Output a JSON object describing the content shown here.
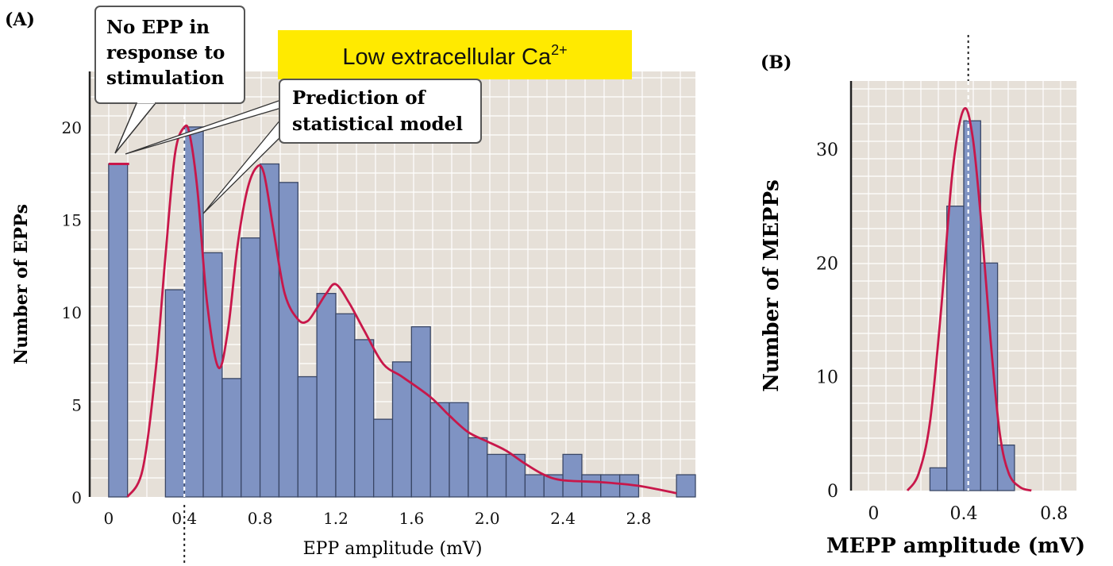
{
  "panel_a": {
    "label": "(A)",
    "banner": {
      "main": "Low extracellular Ca",
      "sup": "2+",
      "color": "#ffea00"
    },
    "callout_no_epp": [
      "No EPP in",
      "response to",
      "stimulation"
    ],
    "callout_prediction": [
      "Prediction of",
      "statistical model"
    ]
  },
  "panel_b": {
    "label": "(B)"
  },
  "colors": {
    "bar": "#7f93c3",
    "bar_stroke": "#3a4766",
    "curve": "#c8174a",
    "plot_bg": "#e6e0d8",
    "grid": "#ffffff"
  },
  "chart_data": [
    {
      "type": "bar",
      "xlabel": "EPP amplitude (mV)",
      "ylabel": "Number of  EPPs",
      "xlim": [
        -0.1,
        3.1
      ],
      "ylim": [
        0,
        23
      ],
      "xticks": [
        "0",
        "0.4",
        "0.8",
        "1.2",
        "1.6",
        "2.0",
        "2.4",
        "2.8"
      ],
      "xtick_values": [
        0,
        0.4,
        0.8,
        1.2,
        1.6,
        2.0,
        2.4,
        2.8
      ],
      "yticks": [
        "0",
        "5",
        "10",
        "15",
        "20"
      ],
      "ytick_values": [
        0,
        5,
        10,
        15,
        20
      ],
      "bin_width": 0.1,
      "bins": [
        {
          "x": 0.0,
          "value": 18
        },
        {
          "x": 0.3,
          "value": 11.2
        },
        {
          "x": 0.4,
          "value": 20
        },
        {
          "x": 0.5,
          "value": 13.2
        },
        {
          "x": 0.6,
          "value": 6.4
        },
        {
          "x": 0.7,
          "value": 14
        },
        {
          "x": 0.8,
          "value": 18
        },
        {
          "x": 0.9,
          "value": 17
        },
        {
          "x": 1.0,
          "value": 6.5
        },
        {
          "x": 1.1,
          "value": 11
        },
        {
          "x": 1.2,
          "value": 9.9
        },
        {
          "x": 1.3,
          "value": 8.5
        },
        {
          "x": 1.4,
          "value": 4.2
        },
        {
          "x": 1.5,
          "value": 7.3
        },
        {
          "x": 1.6,
          "value": 9.2
        },
        {
          "x": 1.7,
          "value": 5.1
        },
        {
          "x": 1.8,
          "value": 5.1
        },
        {
          "x": 1.9,
          "value": 3.2
        },
        {
          "x": 2.0,
          "value": 2.3
        },
        {
          "x": 2.1,
          "value": 2.3
        },
        {
          "x": 2.2,
          "value": 1.2
        },
        {
          "x": 2.3,
          "value": 1.2
        },
        {
          "x": 2.4,
          "value": 2.3
        },
        {
          "x": 2.5,
          "value": 1.2
        },
        {
          "x": 2.6,
          "value": 1.2
        },
        {
          "x": 2.7,
          "value": 1.2
        },
        {
          "x": 3.0,
          "value": 1.2
        }
      ],
      "curve": {
        "x": [
          0.1,
          0.18,
          0.25,
          0.3,
          0.35,
          0.4,
          0.43,
          0.47,
          0.52,
          0.58,
          0.63,
          0.68,
          0.73,
          0.78,
          0.82,
          0.87,
          0.93,
          1.0,
          1.05,
          1.1,
          1.15,
          1.2,
          1.27,
          1.35,
          1.45,
          1.55,
          1.7,
          1.8,
          1.9,
          2.0,
          2.1,
          2.2,
          2.3,
          2.4,
          2.6,
          2.8,
          3.0
        ],
        "y": [
          0,
          1.5,
          7,
          13,
          18.5,
          20,
          19.5,
          16.5,
          10.5,
          7,
          9,
          13.5,
          16.5,
          17.8,
          17.5,
          14.5,
          11,
          9.6,
          9.5,
          10.2,
          11,
          11.5,
          10.5,
          9,
          7.2,
          6.5,
          5.4,
          4.4,
          3.5,
          3,
          2.5,
          1.8,
          1.2,
          0.9,
          0.8,
          0.6,
          0.2
        ]
      },
      "no_epp_marker": {
        "x": 0.05,
        "value": 18
      },
      "mean_marker_x": 0.4
    },
    {
      "type": "bar",
      "xlabel": "MEPP amplitude (mV)",
      "ylabel": "Number of MEPPs",
      "xlim": [
        -0.1,
        0.9
      ],
      "ylim": [
        0,
        36
      ],
      "xticks": [
        "0",
        "0.4",
        "0.8"
      ],
      "xtick_values": [
        0,
        0.4,
        0.8
      ],
      "yticks": [
        "0",
        "10",
        "20",
        "30"
      ],
      "ytick_values": [
        0,
        10,
        20,
        30
      ],
      "bin_width": 0.075,
      "bins": [
        {
          "x": 0.25,
          "value": 2
        },
        {
          "x": 0.325,
          "value": 25
        },
        {
          "x": 0.4,
          "value": 32.5
        },
        {
          "x": 0.475,
          "value": 20
        },
        {
          "x": 0.55,
          "value": 4
        }
      ],
      "curve": {
        "x": [
          0.15,
          0.2,
          0.25,
          0.3,
          0.35,
          0.4,
          0.44,
          0.48,
          0.52,
          0.56,
          0.6,
          0.65,
          0.7
        ],
        "y": [
          0,
          1.5,
          6,
          16,
          28,
          33.5,
          31,
          23,
          13,
          5,
          1.5,
          0.3,
          0
        ],
        "smooth": true
      },
      "mean_marker_x": 0.42
    }
  ]
}
